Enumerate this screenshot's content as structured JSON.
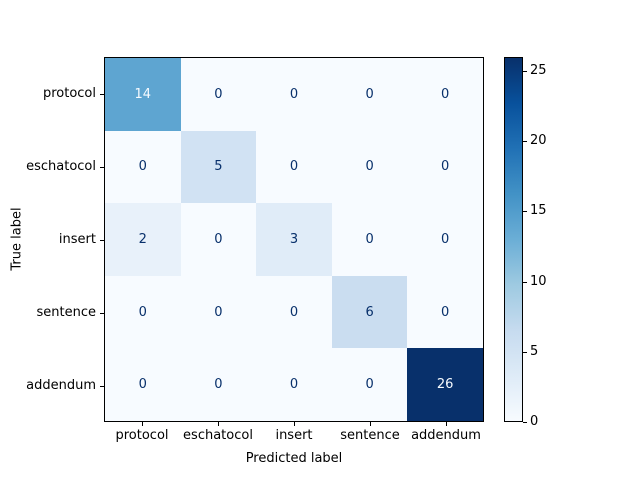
{
  "figure": {
    "background": "#ffffff"
  },
  "chart_data": {
    "type": "heatmap",
    "subtype": "confusion_matrix",
    "title": "",
    "xlabel": "Predicted label",
    "ylabel": "True label",
    "categories": [
      "protocol",
      "eschatocol",
      "insert",
      "sentence",
      "addendum"
    ],
    "matrix": [
      [
        14,
        0,
        0,
        0,
        0
      ],
      [
        0,
        5,
        0,
        0,
        0
      ],
      [
        2,
        0,
        3,
        0,
        0
      ],
      [
        0,
        0,
        0,
        6,
        0
      ],
      [
        0,
        0,
        0,
        0,
        26
      ]
    ],
    "vmin": 0,
    "vmax": 26,
    "colormap": "Blues",
    "colormap_stops": [
      "#f7fbff",
      "#deebf7",
      "#c6dbef",
      "#9ecae1",
      "#6baed6",
      "#4292c6",
      "#2171b5",
      "#08519c",
      "#08306b"
    ],
    "colorbar_ticks": [
      0,
      5,
      10,
      15,
      20,
      25
    ],
    "legend_position": "right-colorbar",
    "grid": false
  },
  "colors": {
    "cell_text_dark": "#08306b",
    "cell_text_light": "#f7fbff",
    "axis_text": "#000000",
    "spine": "#000000"
  }
}
